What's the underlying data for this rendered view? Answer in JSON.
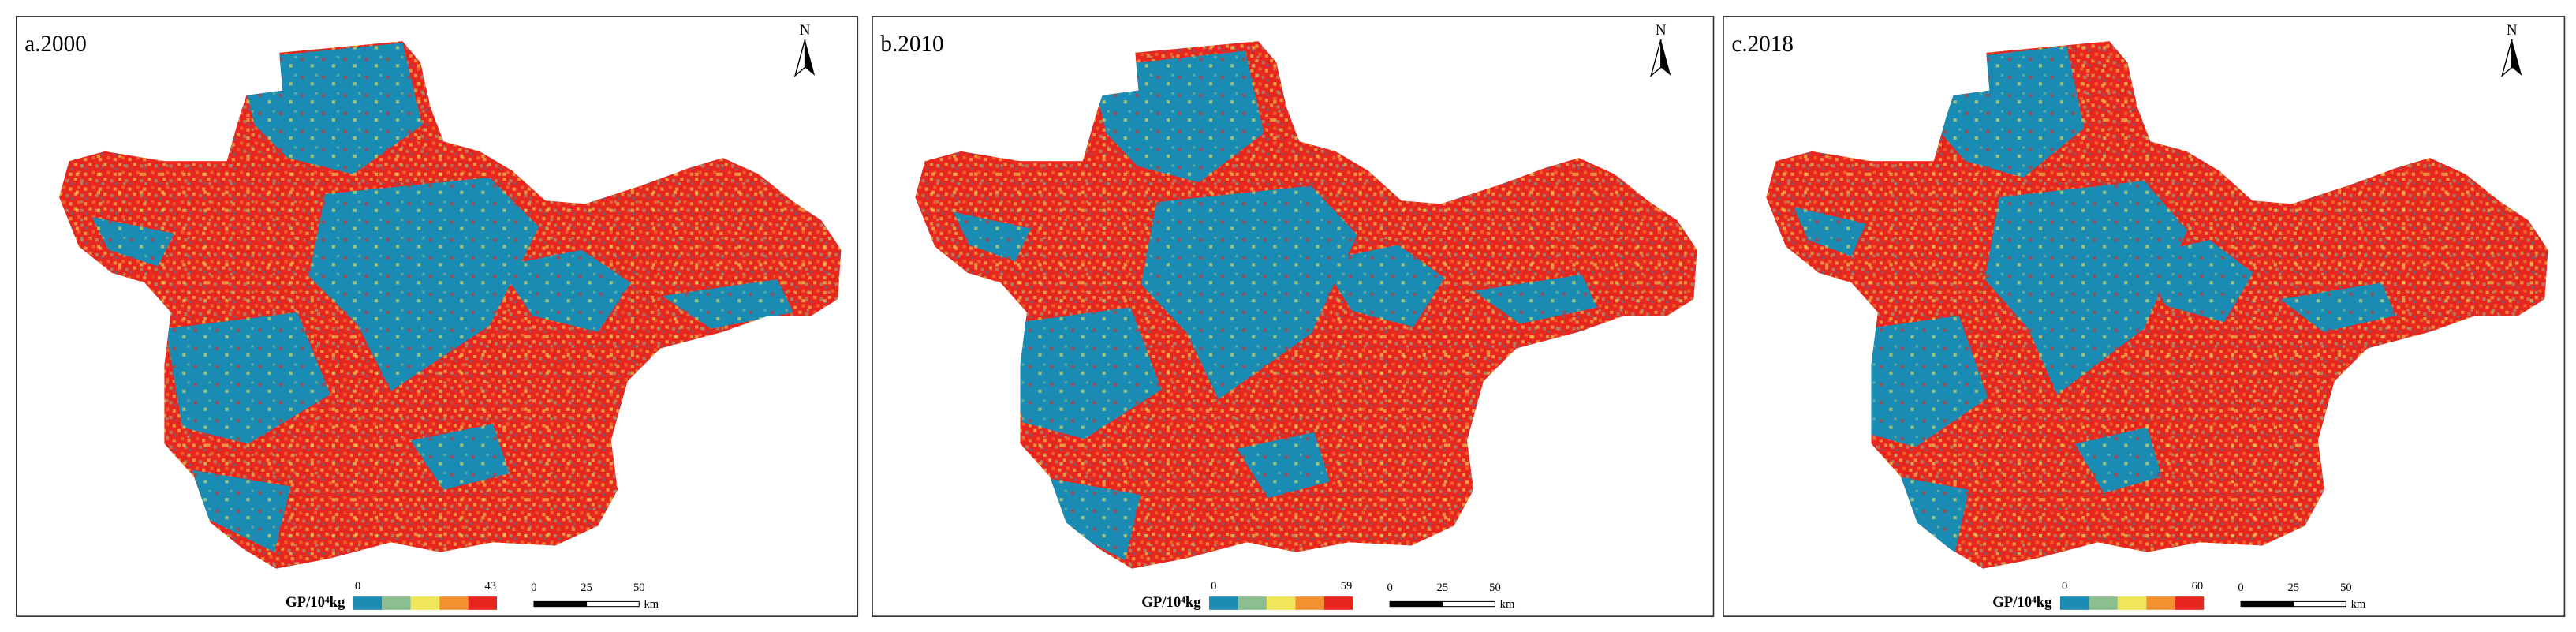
{
  "colors": [
    "#1a8cb4",
    "#8cbf8f",
    "#f0e65a",
    "#f4902e",
    "#e6261f"
  ],
  "panels": [
    {
      "label": "a.2000",
      "north": "N",
      "legend": {
        "title": "GP/10⁴kg",
        "min": 0,
        "max": 43
      },
      "scale": {
        "ticks": [
          0,
          25,
          50
        ],
        "unit": "km"
      }
    },
    {
      "label": "b.2010",
      "north": "N",
      "legend": {
        "title": "GP/10⁴kg",
        "min": 0,
        "max": 59
      },
      "scale": {
        "ticks": [
          0,
          25,
          50
        ],
        "unit": "km"
      }
    },
    {
      "label": "c.2018",
      "north": "N",
      "legend": {
        "title": "GP/10⁴kg",
        "min": 0,
        "max": 60
      },
      "scale": {
        "ticks": [
          0,
          25,
          50
        ],
        "unit": "km"
      }
    }
  ]
}
